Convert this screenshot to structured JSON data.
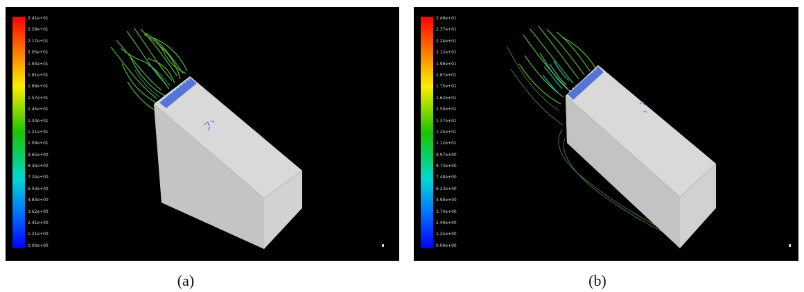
{
  "panels": [
    {
      "id": "a",
      "caption": "(a)",
      "colorbar_ticks": [
        "2.41e+01",
        "2.29e+01",
        "2.17e+01",
        "2.05e+01",
        "1.93e+01",
        "1.81e+01",
        "1.69e+01",
        "1.57e+01",
        "1.45e+01",
        "1.33e+01",
        "1.21e+01",
        "1.09e+01",
        "9.65e+00",
        "8.44e+00",
        "7.24e+00",
        "6.03e+00",
        "4.83e+00",
        "3.62e+00",
        "2.41e+00",
        "1.21e+00",
        "0.00e+00"
      ]
    },
    {
      "id": "b",
      "caption": "(b)",
      "colorbar_ticks": [
        "2.49e+01",
        "2.37e+01",
        "2.24e+01",
        "2.12e+01",
        "1.99e+01",
        "1.87e+01",
        "1.75e+01",
        "1.62e+01",
        "1.50e+01",
        "1.37e+01",
        "1.25e+01",
        "1.12e+01",
        "9.97e+00",
        "8.73e+00",
        "7.48e+00",
        "6.23e+00",
        "4.99e+00",
        "3.74e+00",
        "2.49e+00",
        "1.25e+00",
        "0.00e+00"
      ]
    }
  ],
  "colors": {
    "background": "#000000",
    "block": "#cfcfcf",
    "streamline": "#59c23a",
    "streamline_slow": "#2fd0c8",
    "inlet": "#2a52d6"
  }
}
